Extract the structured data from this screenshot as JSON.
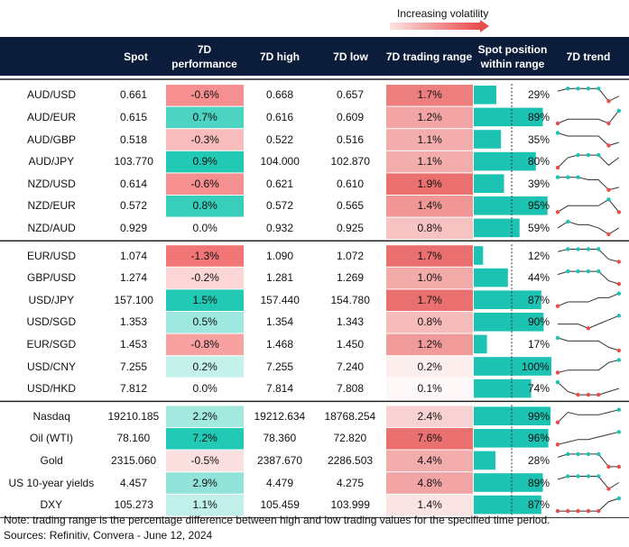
{
  "header": {
    "legend": "Increasing volatility",
    "columns": [
      "Spot",
      "7D performance",
      "7D high",
      "7D low",
      "7D trading range",
      "Spot position within range",
      "7D trend"
    ]
  },
  "table": {
    "groups": [
      {
        "rows": [
          {
            "pair": "AUD/USD",
            "spot": "0.661",
            "performance": {
              "value": -0.6,
              "label": "-0.6%"
            },
            "high": "0.668",
            "low": "0.657",
            "range": {
              "value": 1.7,
              "label": "1.7%"
            },
            "position": {
              "value": 29,
              "label": "29%"
            },
            "trend": [
              5,
              6,
              6,
              6,
              6,
              1,
              3
            ]
          },
          {
            "pair": "AUD/EUR",
            "spot": "0.615",
            "performance": {
              "value": 0.7,
              "label": "0.7%"
            },
            "high": "0.616",
            "low": "0.609",
            "range": {
              "value": 1.2,
              "label": "1.2%"
            },
            "position": {
              "value": 89,
              "label": "89%"
            },
            "trend": [
              2,
              3,
              3,
              3,
              3,
              2,
              5
            ]
          },
          {
            "pair": "AUD/GBP",
            "spot": "0.518",
            "performance": {
              "value": -0.3,
              "label": "-0.3%"
            },
            "high": "0.522",
            "low": "0.516",
            "range": {
              "value": 1.1,
              "label": "1.1%"
            },
            "position": {
              "value": 35,
              "label": "35%"
            },
            "trend": [
              5,
              4,
              4,
              4,
              4,
              1,
              2
            ]
          },
          {
            "pair": "AUD/JPY",
            "spot": "103.770",
            "performance": {
              "value": 0.9,
              "label": "0.9%"
            },
            "high": "104.000",
            "low": "102.870",
            "range": {
              "value": 1.1,
              "label": "1.1%"
            },
            "position": {
              "value": 80,
              "label": "80%"
            },
            "trend": [
              1,
              5,
              6,
              6,
              6,
              2,
              5
            ]
          },
          {
            "pair": "NZD/USD",
            "spot": "0.614",
            "performance": {
              "value": -0.6,
              "label": "-0.6%"
            },
            "high": "0.621",
            "low": "0.610",
            "range": {
              "value": 1.9,
              "label": "1.9%"
            },
            "position": {
              "value": 39,
              "label": "39%"
            },
            "trend": [
              6,
              6,
              6,
              5,
              5,
              1,
              2
            ]
          },
          {
            "pair": "NZD/EUR",
            "spot": "0.572",
            "performance": {
              "value": 0.8,
              "label": "0.8%"
            },
            "high": "0.572",
            "low": "0.565",
            "range": {
              "value": 1.4,
              "label": "1.4%"
            },
            "position": {
              "value": 95,
              "label": "95%"
            },
            "trend": [
              3,
              4,
              4,
              4,
              4,
              5,
              3
            ]
          },
          {
            "pair": "NZD/AUD",
            "spot": "0.929",
            "performance": {
              "value": 0.0,
              "label": "0.0%"
            },
            "high": "0.932",
            "low": "0.925",
            "range": {
              "value": 0.8,
              "label": "0.8%"
            },
            "position": {
              "value": 59,
              "label": "59%"
            },
            "trend": [
              4,
              6,
              5,
              5,
              4,
              2,
              4
            ]
          }
        ]
      },
      {
        "rows": [
          {
            "pair": "EUR/USD",
            "spot": "1.074",
            "performance": {
              "value": -1.3,
              "label": "-1.3%"
            },
            "high": "1.090",
            "low": "1.072",
            "range": {
              "value": 1.7,
              "label": "1.7%"
            },
            "position": {
              "value": 12,
              "label": "12%"
            },
            "trend": [
              5,
              6,
              6,
              6,
              6,
              2,
              1
            ]
          },
          {
            "pair": "GBP/USD",
            "spot": "1.274",
            "performance": {
              "value": -0.2,
              "label": "-0.2%"
            },
            "high": "1.281",
            "low": "1.269",
            "range": {
              "value": 1.0,
              "label": "1.0%"
            },
            "position": {
              "value": 44,
              "label": "44%"
            },
            "trend": [
              5,
              6,
              6,
              6,
              6,
              3,
              2
            ]
          },
          {
            "pair": "USD/JPY",
            "spot": "157.100",
            "performance": {
              "value": 1.5,
              "label": "1.5%"
            },
            "high": "157.440",
            "low": "154.780",
            "range": {
              "value": 1.7,
              "label": "1.7%"
            },
            "position": {
              "value": 87,
              "label": "87%"
            },
            "trend": [
              3,
              4,
              4,
              4,
              5,
              5,
              6
            ]
          },
          {
            "pair": "USD/SGD",
            "spot": "1.353",
            "performance": {
              "value": 0.5,
              "label": "0.5%"
            },
            "high": "1.354",
            "low": "1.343",
            "range": {
              "value": 0.8,
              "label": "0.8%"
            },
            "position": {
              "value": 90,
              "label": "90%"
            },
            "trend": [
              4,
              4,
              4,
              3,
              4,
              5,
              6
            ]
          },
          {
            "pair": "EUR/SGD",
            "spot": "1.453",
            "performance": {
              "value": -0.8,
              "label": "-0.8%"
            },
            "high": "1.468",
            "low": "1.450",
            "range": {
              "value": 1.2,
              "label": "1.2%"
            },
            "position": {
              "value": 17,
              "label": "17%"
            },
            "trend": [
              6,
              5,
              5,
              5,
              5,
              3,
              2
            ]
          },
          {
            "pair": "USD/CNY",
            "spot": "7.255",
            "performance": {
              "value": 0.2,
              "label": "0.2%"
            },
            "high": "7.255",
            "low": "7.240",
            "range": {
              "value": 0.2,
              "label": "0.2%"
            },
            "position": {
              "value": 100,
              "label": "100%"
            },
            "trend": [
              1,
              2,
              2,
              2,
              2,
              5,
              6
            ]
          },
          {
            "pair": "USD/HKD",
            "spot": "7.812",
            "performance": {
              "value": 0.0,
              "label": "0.0%"
            },
            "high": "7.814",
            "low": "7.808",
            "range": {
              "value": 0.1,
              "label": "0.1%"
            },
            "position": {
              "value": 74,
              "label": "74%"
            },
            "trend": [
              6,
              3,
              2,
              2,
              2,
              3,
              4
            ]
          }
        ]
      },
      {
        "rows": [
          {
            "pair": "Nasdaq",
            "spot": "19210.185",
            "performance": {
              "value": 2.2,
              "label": "2.2%"
            },
            "high": "19212.634",
            "low": "18768.254",
            "range": {
              "value": 2.4,
              "label": "2.4%"
            },
            "position": {
              "value": 99,
              "label": "99%"
            },
            "trend": [
              2,
              6,
              5,
              5,
              5,
              6,
              7
            ]
          },
          {
            "pair": "Oil (WTI)",
            "spot": "78.160",
            "performance": {
              "value": 7.2,
              "label": "7.2%"
            },
            "high": "78.360",
            "low": "72.820",
            "range": {
              "value": 7.6,
              "label": "7.6%"
            },
            "position": {
              "value": 96,
              "label": "96%"
            },
            "trend": [
              1,
              2,
              3,
              3,
              4,
              5,
              6
            ]
          },
          {
            "pair": "Gold",
            "spot": "2315.060",
            "performance": {
              "value": -0.5,
              "label": "-0.5%"
            },
            "high": "2387.670",
            "low": "2286.503",
            "range": {
              "value": 4.4,
              "label": "4.4%"
            },
            "position": {
              "value": 28,
              "label": "28%"
            },
            "trend": [
              5,
              6,
              6,
              6,
              6,
              2,
              2
            ]
          },
          {
            "pair": "US 10-year yields",
            "spot": "4.457",
            "performance": {
              "value": 2.9,
              "label": "2.9%"
            },
            "high": "4.479",
            "low": "4.275",
            "range": {
              "value": 4.8,
              "label": "4.8%"
            },
            "position": {
              "value": 89,
              "label": "89%"
            },
            "trend": [
              4,
              5,
              5,
              5,
              5,
              1,
              3
            ]
          },
          {
            "pair": "DXY",
            "spot": "105.273",
            "performance": {
              "value": 1.1,
              "label": "1.1%"
            },
            "high": "105.459",
            "low": "103.999",
            "range": {
              "value": 1.4,
              "label": "1.4%"
            },
            "position": {
              "value": 87,
              "label": "87%"
            },
            "trend": [
              2,
              2,
              2,
              2,
              2,
              5,
              6
            ]
          }
        ]
      }
    ]
  },
  "footer": {
    "note": "Note: trading range is the percentage difference between high and low trading values for the specified time period.",
    "sources": "Sources: Refinitiv, Convera - June 12, 2024"
  }
}
